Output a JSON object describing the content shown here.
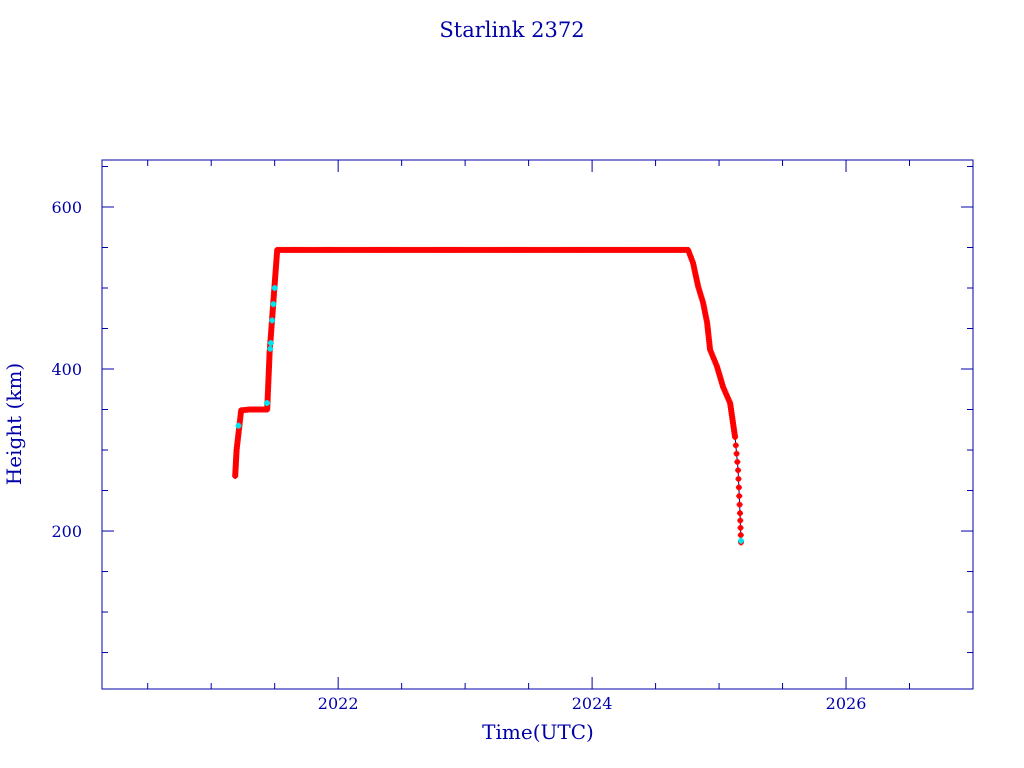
{
  "chart_data": {
    "type": "scatter",
    "title": "Starlink 2372",
    "xlabel": "Time(UTC)",
    "ylabel": "Height (km)",
    "xlim": [
      2020.14,
      2027.0
    ],
    "ylim": [
      5,
      658
    ],
    "x_ticks": [
      "2022",
      "2024",
      "2026"
    ],
    "y_ticks": [
      "200",
      "400",
      "600"
    ],
    "grid": false,
    "colors": {
      "axis": "#0000a8",
      "points": "#ff0000",
      "highlight_points": "#00e5ee",
      "line": "#000080"
    },
    "series": [
      {
        "x": [
          2021.189,
          2021.2,
          2021.236,
          2021.3,
          2021.441,
          2021.46,
          2021.5,
          2021.52,
          2022.0,
          2023.0,
          2024.0,
          2024.756,
          2024.795,
          2024.835,
          2024.874,
          2024.906,
          2024.929,
          2024.984,
          2025.031,
          2025.087,
          2025.126,
          2025.15,
          2025.165,
          2025.173
        ],
        "y": [
          268,
          300,
          349,
          350,
          350,
          420,
          505,
          547,
          547,
          547,
          547,
          547,
          531,
          502,
          482,
          457,
          424,
          403,
          378,
          358,
          316,
          275,
          222,
          186
        ]
      },
      {
        "x": [
          2021.215,
          2021.44,
          2021.465,
          2021.47,
          2021.48,
          2021.49,
          2021.5,
          2025.173
        ],
        "y": [
          330,
          358,
          425,
          432,
          460,
          480,
          500,
          188
        ]
      }
    ]
  }
}
